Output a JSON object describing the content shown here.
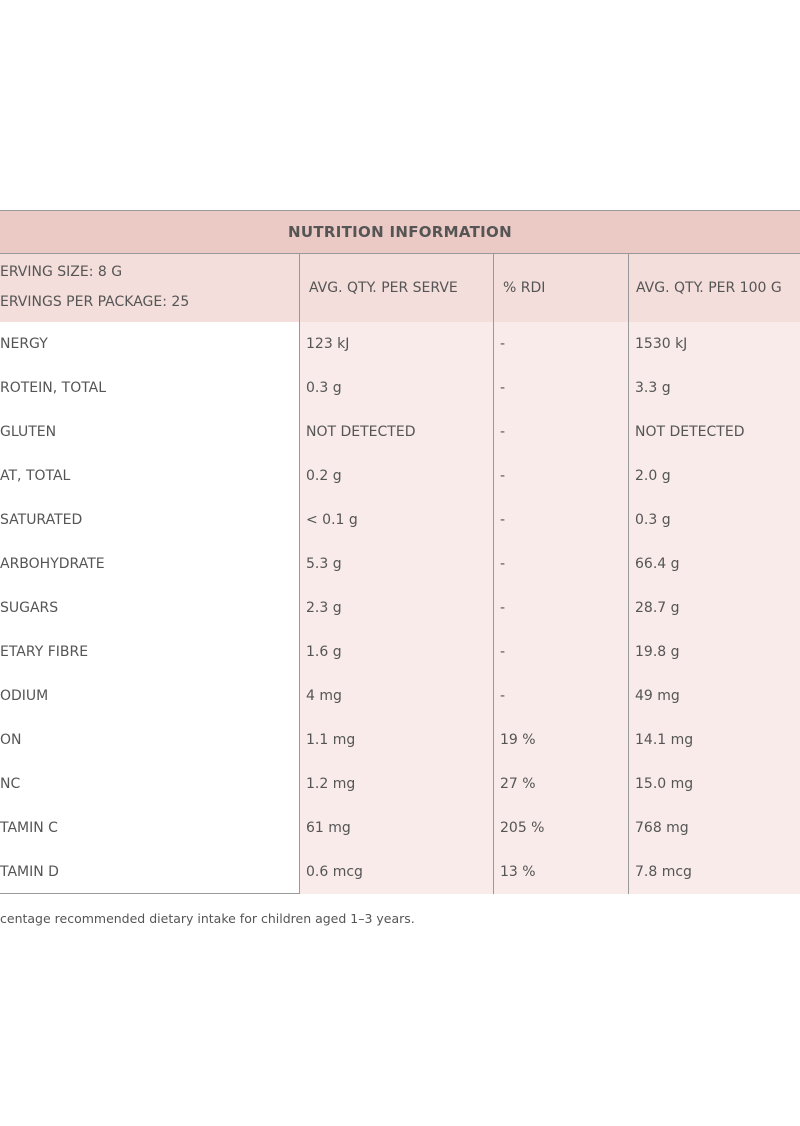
{
  "table": {
    "title": "NUTRITION INFORMATION",
    "header": {
      "serving": [
        "ERVING SIZE: 8 G",
        "ERVINGS PER PACKAGE: 25"
      ],
      "columns": [
        "AVG. QTY. PER SERVE",
        "% RDI",
        "AVG. QTY. PER 100 G"
      ]
    },
    "rows": [
      [
        "NERGY",
        "123 kJ",
        "-",
        "1530 kJ"
      ],
      [
        "ROTEIN, TOTAL",
        "0.3 g",
        "-",
        "3.3 g"
      ],
      [
        "GLUTEN",
        "NOT DETECTED",
        "-",
        "NOT DETECTED"
      ],
      [
        "AT, TOTAL",
        "0.2 g",
        "-",
        "2.0 g"
      ],
      [
        "SATURATED",
        "< 0.1 g",
        "-",
        "0.3 g"
      ],
      [
        "ARBOHYDRATE",
        "5.3 g",
        "-",
        "66.4 g"
      ],
      [
        "SUGARS",
        "2.3 g",
        "-",
        "28.7 g"
      ],
      [
        "ETARY FIBRE",
        "1.6 g",
        "-",
        "19.8 g"
      ],
      [
        "ODIUM",
        "4 mg",
        "-",
        "49 mg"
      ],
      [
        "ON",
        "1.1 mg",
        "19 %",
        "14.1 mg"
      ],
      [
        "NC",
        "1.2 mg",
        "27 %",
        "15.0 mg"
      ],
      [
        "TAMIN C",
        "61 mg",
        "205 %",
        "768 mg"
      ],
      [
        "TAMIN D",
        "0.6 mcg",
        "13 %",
        "7.8 mcg"
      ]
    ],
    "footnote": "centage recommended dietary intake for children aged 1–3 years."
  }
}
